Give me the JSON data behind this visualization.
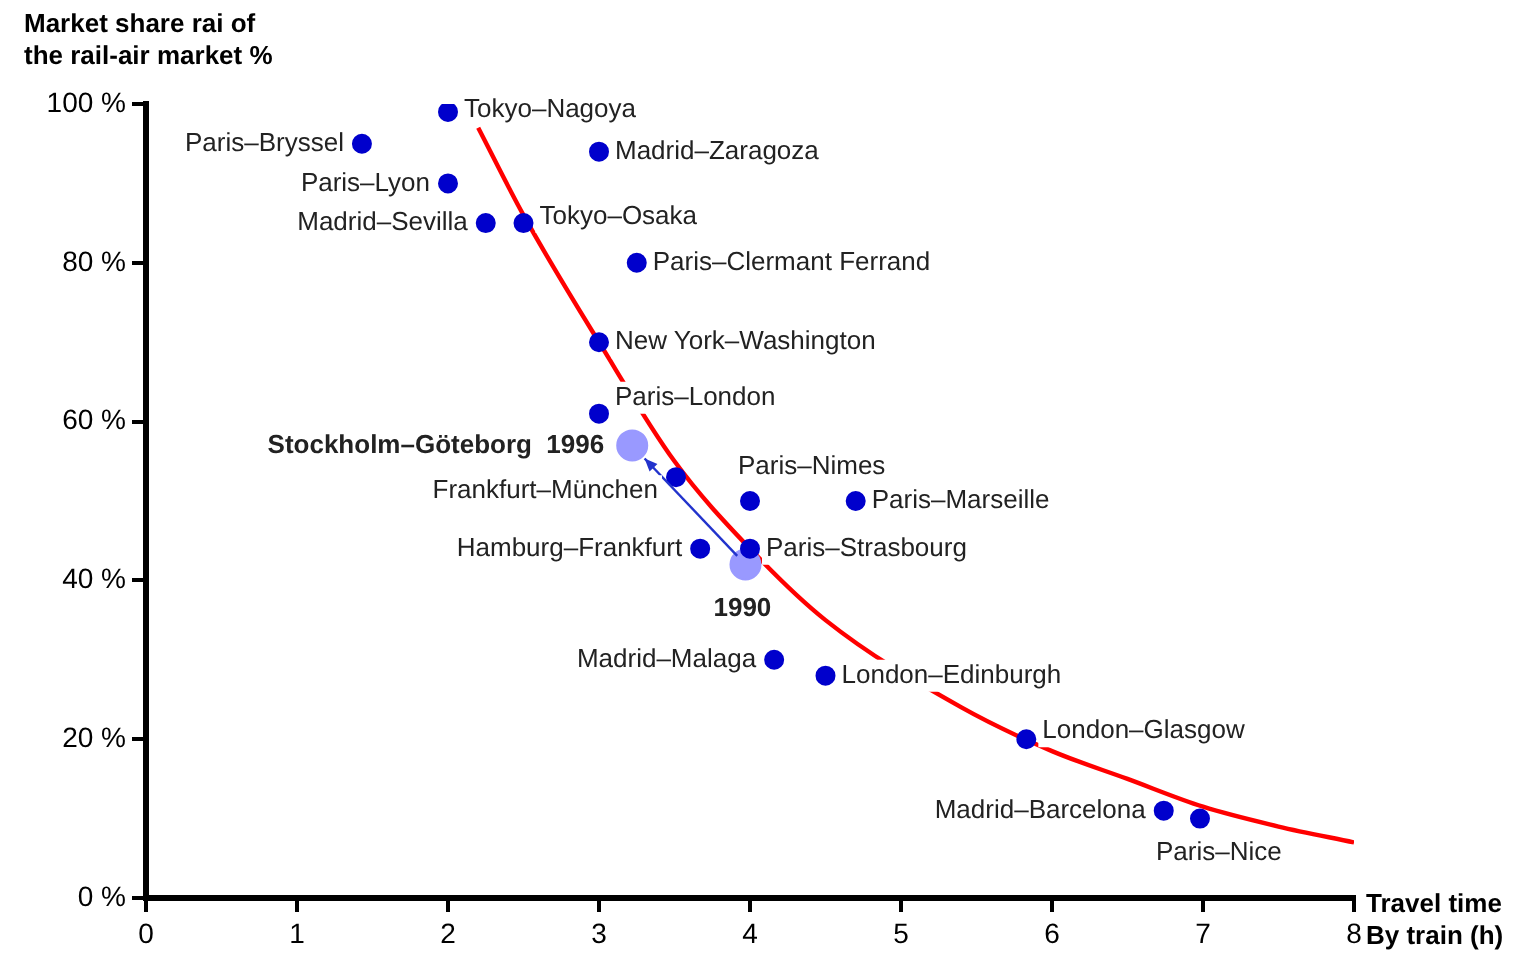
{
  "chart_data": {
    "type": "scatter",
    "ylabel": "Market share rai of\nthe rail-air market %",
    "xlabel": "Travel time\nBy train (h)",
    "xlim": [
      0,
      8
    ],
    "xticks": [
      0,
      1,
      2,
      3,
      4,
      5,
      6,
      7,
      8
    ],
    "ylim": [
      0,
      100
    ],
    "yticks": [
      {
        "value": 0,
        "label": "0 %"
      },
      {
        "value": 20,
        "label": "20 %"
      },
      {
        "value": 40,
        "label": "40 %"
      },
      {
        "value": 60,
        "label": "60 %"
      },
      {
        "value": 80,
        "label": "80 %"
      },
      {
        "value": 100,
        "label": "100 %"
      }
    ],
    "grid": false,
    "legend": false,
    "marker": "circle",
    "series": [
      {
        "color": "#0000cc",
        "x": [
          1.43,
          2.0,
          2.0,
          2.25,
          2.5,
          3.0,
          3.25,
          3.0,
          3.0,
          3.51,
          4.0,
          4.7,
          4.0,
          3.67,
          4.16,
          4.5,
          5.83,
          6.74,
          6.98
        ],
        "values": [
          95,
          99,
          90,
          85,
          85,
          94,
          80,
          70,
          61,
          53,
          50,
          50,
          44,
          44,
          30,
          28,
          20,
          11,
          10
        ]
      },
      {
        "color": "#9999ff",
        "x": [
          3.97,
          3.22
        ],
        "values": [
          42,
          57
        ]
      },
      {
        "type": "line",
        "color": "#ff0000",
        "marker": "none",
        "line_style": "solid",
        "x": [
          2.2,
          2.5,
          3,
          3.5,
          4,
          4.5,
          5.4,
          6,
          6.5,
          7,
          7.5,
          8
        ],
        "values": [
          97,
          86,
          70,
          55,
          44,
          35,
          24,
          18.5,
          15,
          11.5,
          9,
          7
        ]
      }
    ],
    "annotations": [
      {
        "text": "Paris–Bryssel",
        "x": 1.43,
        "y": 95
      },
      {
        "text": "Tokyo–Nagoya",
        "x": 2.0,
        "y": 99
      },
      {
        "text": "Paris–Lyon",
        "x": 2.0,
        "y": 90
      },
      {
        "text": "Madrid–Sevilla",
        "x": 2.25,
        "y": 85
      },
      {
        "text": "Tokyo–Osaka",
        "x": 2.5,
        "y": 85
      },
      {
        "text": "Madrid–Zaragoza",
        "x": 3.0,
        "y": 94
      },
      {
        "text": "Paris–Clermant Ferrand",
        "x": 3.25,
        "y": 80
      },
      {
        "text": "New York–Washington",
        "x": 3.0,
        "y": 70
      },
      {
        "text": "Paris–London",
        "x": 3.0,
        "y": 61
      },
      {
        "text": "Frankfurt–München",
        "x": 3.51,
        "y": 53
      },
      {
        "text": "Paris–Nimes",
        "x": 4.0,
        "y": 50
      },
      {
        "text": "Paris–Marseille",
        "x": 4.7,
        "y": 50
      },
      {
        "text": "Paris–Strasbourg",
        "x": 4.0,
        "y": 44
      },
      {
        "text": "Hamburg–Frankfurt",
        "x": 3.67,
        "y": 44
      },
      {
        "text": "Madrid–Malaga",
        "x": 4.16,
        "y": 30
      },
      {
        "text": "London–Edinburgh",
        "x": 4.5,
        "y": 28
      },
      {
        "text": "London–Glasgow",
        "x": 5.83,
        "y": 20
      },
      {
        "text": "Madrid–Barcelona",
        "x": 6.74,
        "y": 11
      },
      {
        "text": "Paris–Nice",
        "x": 6.98,
        "y": 10
      },
      {
        "text": "Stockholm–Göteborg  1996",
        "x": 3.22,
        "y": 57
      },
      {
        "text": "1990",
        "x": 3.97,
        "y": 42
      }
    ]
  }
}
